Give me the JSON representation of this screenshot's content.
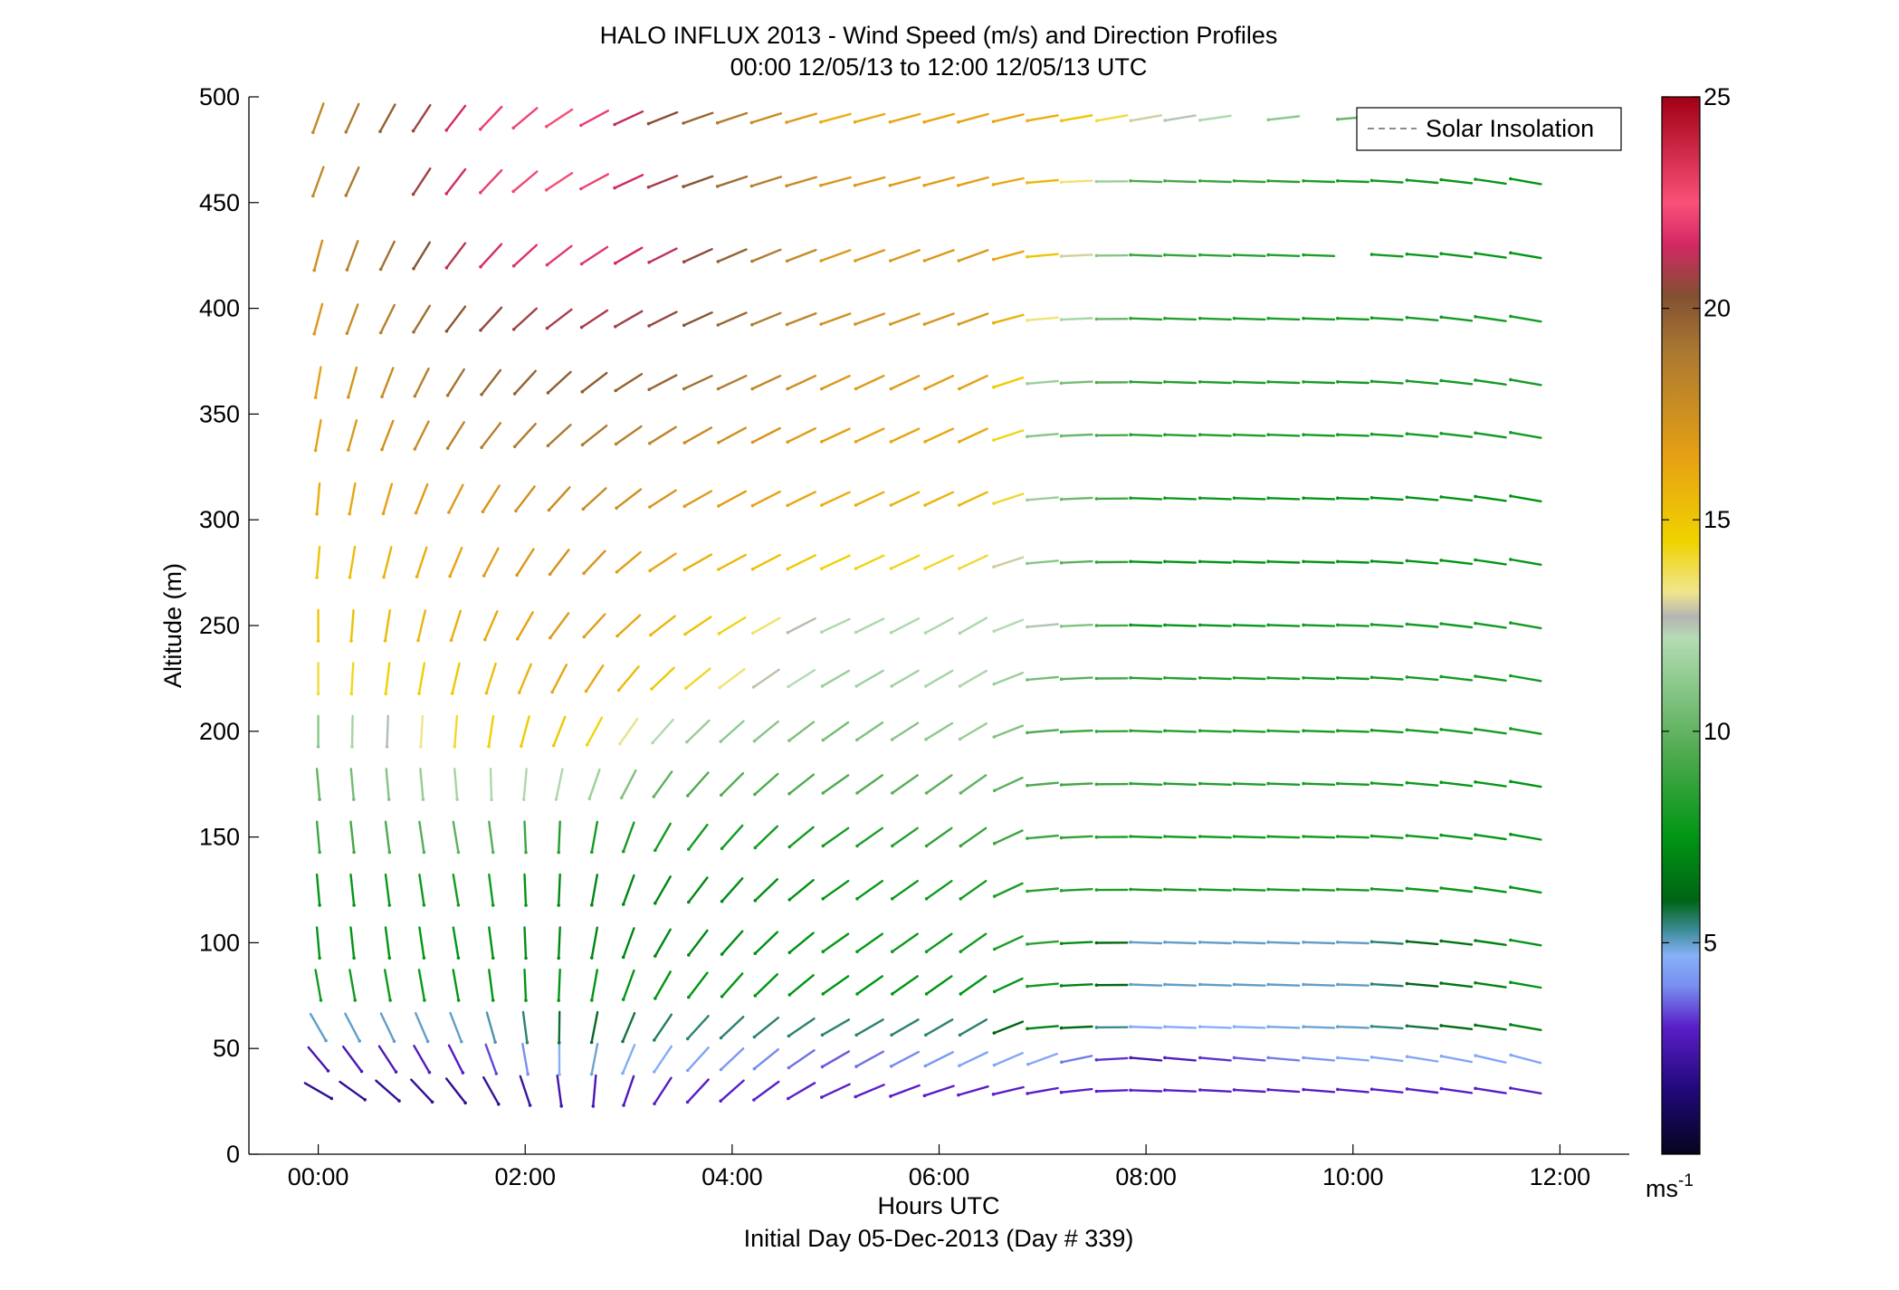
{
  "chart_data": {
    "type": "scatter",
    "title": "HALO INFLUX 2013 - Wind Speed (m/s) and Direction Profiles",
    "subtitle": "00:00 12/05/13 to 12:00 12/05/13  UTC",
    "xlabel": "Hours UTC",
    "xlabel2": "Initial Day 05-Dec-2013 (Day # 339)",
    "ylabel": "Altitude (m)",
    "xlim": [
      -0.67,
      12.67
    ],
    "ylim": [
      0,
      500
    ],
    "x_ticks": [
      0,
      2,
      4,
      6,
      8,
      10,
      12
    ],
    "x_tick_labels": [
      "00:00",
      "02:00",
      "04:00",
      "06:00",
      "08:00",
      "10:00",
      "12:00"
    ],
    "y_ticks": [
      0,
      50,
      100,
      150,
      200,
      250,
      300,
      350,
      400,
      450,
      500
    ],
    "y_tick_labels": [
      "0",
      "50",
      "100",
      "150",
      "200",
      "250",
      "300",
      "350",
      "400",
      "450",
      "500"
    ],
    "legend": {
      "label": "Solar Insolation",
      "placement": "top-right",
      "line_color": "#8c8c8c"
    },
    "colorbar": {
      "range": [
        0,
        25
      ],
      "ticks": [
        5,
        10,
        15,
        20,
        25
      ],
      "tick_labels": [
        "5",
        "10",
        "15",
        "20",
        "25"
      ],
      "unit_label": "ms",
      "unit_exponent": "-1",
      "stops": [
        {
          "v": 0,
          "c": "#05051e"
        },
        {
          "v": 1.5,
          "c": "#200878"
        },
        {
          "v": 3,
          "c": "#5a1ec8"
        },
        {
          "v": 4,
          "c": "#7890f0"
        },
        {
          "v": 4.7,
          "c": "#88b0f8"
        },
        {
          "v": 5.3,
          "c": "#3c8c96"
        },
        {
          "v": 6,
          "c": "#006414"
        },
        {
          "v": 7.5,
          "c": "#009614"
        },
        {
          "v": 9.5,
          "c": "#50aa50"
        },
        {
          "v": 12.2,
          "c": "#b4dcb4"
        },
        {
          "v": 12.7,
          "c": "#b4b4b4"
        },
        {
          "v": 13.3,
          "c": "#f0e68c"
        },
        {
          "v": 14.5,
          "c": "#f0d200"
        },
        {
          "v": 16.5,
          "c": "#e6a014"
        },
        {
          "v": 19,
          "c": "#aa7832"
        },
        {
          "v": 20.3,
          "c": "#825032"
        },
        {
          "v": 21.5,
          "c": "#d22864"
        },
        {
          "v": 22.5,
          "c": "#fa5078"
        },
        {
          "v": 25,
          "c": "#a00014"
        }
      ]
    },
    "wind_profiles": {
      "description_units": "time in hours UTC, altitude in m, speed in m/s, direction in degrees wind-from",
      "times": [
        0,
        0.33,
        0.67,
        1,
        1.33,
        1.67,
        2,
        2.33,
        2.67,
        3,
        3.33,
        3.67,
        4,
        4.33,
        4.67,
        5,
        5.33,
        5.67,
        6,
        6.33,
        6.67,
        7,
        7.33,
        7.67,
        8,
        8.33,
        8.67,
        9,
        9.33,
        9.67,
        10,
        10.33,
        10.67,
        11,
        11.33,
        11.67
      ],
      "altitudes": [
        30,
        45,
        60,
        80,
        100,
        125,
        150,
        175,
        200,
        225,
        250,
        280,
        310,
        340,
        365,
        395,
        425,
        460,
        490
      ],
      "speed_anchors": [
        {
          "t": 0,
          "s": [
            2,
            2.5,
            5,
            8,
            7.5,
            7.5,
            9,
            10,
            11,
            14,
            15,
            15,
            16,
            16.5,
            16.5,
            17,
            17.5,
            18,
            18
          ]
        },
        {
          "t": 1.5,
          "s": [
            2,
            3,
            5,
            7.5,
            7.5,
            8,
            10,
            12,
            14.5,
            15,
            16,
            16.5,
            17,
            18.5,
            19.5,
            20.5,
            21.5,
            22,
            22
          ]
        },
        {
          "t": 2.5,
          "s": [
            2.5,
            5,
            6,
            7.5,
            7,
            7,
            8,
            12,
            15,
            16.5,
            17,
            17.5,
            18,
            19,
            20,
            21,
            22,
            22.5,
            22.5
          ]
        },
        {
          "t": 3.5,
          "s": [
            3,
            4.5,
            5.5,
            7.5,
            7,
            7,
            8,
            9.5,
            11.5,
            14.5,
            15.5,
            16,
            17,
            18,
            19.5,
            20.5,
            21,
            20.5,
            20
          ]
        },
        {
          "t": 5,
          "s": [
            3,
            3.5,
            5.5,
            7.5,
            7.5,
            7.5,
            8,
            9.5,
            10.5,
            11.5,
            12,
            14.5,
            16,
            16.5,
            17,
            17.5,
            17,
            17,
            16
          ]
        },
        {
          "t": 6.5,
          "s": [
            3,
            4.5,
            5.5,
            7.5,
            8,
            8,
            9,
            10,
            11.5,
            12,
            12,
            14,
            15.5,
            16,
            16.5,
            17,
            17,
            16.5,
            16.5
          ]
        },
        {
          "t": 7,
          "s": [
            3,
            4.5,
            7,
            8,
            8.5,
            8.5,
            9,
            9.5,
            9.5,
            10.5,
            12.5,
            11,
            11.5,
            11,
            11.5,
            13.5,
            15,
            15.5,
            16
          ]
        },
        {
          "t": 8,
          "s": [
            3,
            2.5,
            4.5,
            5,
            5,
            8,
            8,
            8.5,
            8.5,
            8.5,
            7.5,
            7.5,
            8,
            8.5,
            8.5,
            8.5,
            9,
            9.5,
            13
          ]
        },
        {
          "t": 10,
          "s": [
            3,
            4.5,
            5,
            5,
            5,
            8,
            8,
            8,
            8,
            8,
            8,
            7.5,
            7.5,
            8,
            8,
            8,
            8,
            8,
            10
          ]
        },
        {
          "t": 11.7,
          "s": [
            3,
            4.5,
            7,
            7.5,
            7.5,
            7.5,
            7.5,
            7.5,
            8,
            8,
            8,
            7.5,
            7.5,
            8,
            8,
            8,
            7.5,
            7.5,
            8
          ]
        }
      ],
      "direction_anchors": [
        {
          "t": 0,
          "d": [
            300,
            320,
            330,
            350,
            355,
            355,
            355,
            355,
            0,
            0,
            0,
            5,
            5,
            10,
            10,
            15,
            15,
            20,
            20
          ]
        },
        {
          "t": 1.5,
          "d": [
            325,
            335,
            340,
            350,
            350,
            350,
            350,
            355,
            5,
            15,
            20,
            25,
            30,
            35,
            35,
            40,
            40,
            40,
            40
          ]
        },
        {
          "t": 2.5,
          "d": [
            358,
            5,
            5,
            5,
            5,
            5,
            5,
            15,
            25,
            30,
            40,
            40,
            45,
            50,
            50,
            55,
            55,
            60,
            60
          ]
        },
        {
          "t": 3.5,
          "d": [
            40,
            40,
            40,
            35,
            35,
            35,
            35,
            40,
            45,
            50,
            55,
            60,
            60,
            60,
            65,
            65,
            65,
            70,
            70
          ]
        },
        {
          "t": 5,
          "d": [
            65,
            60,
            60,
            55,
            55,
            55,
            55,
            55,
            55,
            60,
            65,
            65,
            65,
            65,
            65,
            70,
            70,
            75,
            75
          ]
        },
        {
          "t": 6.5,
          "d": [
            75,
            65,
            60,
            55,
            55,
            55,
            55,
            55,
            60,
            60,
            60,
            65,
            65,
            65,
            65,
            70,
            70,
            75,
            75
          ]
        },
        {
          "t": 7,
          "d": [
            80,
            70,
            85,
            85,
            85,
            85,
            85,
            85,
            85,
            85,
            85,
            85,
            85,
            85,
            85,
            85,
            85,
            85,
            80
          ]
        },
        {
          "t": 8,
          "d": [
            92,
            95,
            92,
            92,
            92,
            92,
            92,
            92,
            92,
            92,
            92,
            92,
            92,
            92,
            92,
            92,
            92,
            92,
            80
          ]
        },
        {
          "t": 10,
          "d": [
            95,
            95,
            92,
            92,
            92,
            92,
            92,
            92,
            92,
            92,
            92,
            92,
            92,
            92,
            92,
            92,
            92,
            92,
            85
          ]
        },
        {
          "t": 11.7,
          "d": [
            100,
            105,
            100,
            100,
            100,
            100,
            100,
            100,
            100,
            100,
            100,
            100,
            100,
            100,
            100,
            100,
            100,
            100,
            100
          ]
        }
      ],
      "missing": [
        {
          "t": 0.67,
          "alt": 460
        },
        {
          "t": 9,
          "alt": 490
        },
        {
          "t": 9.67,
          "alt": 490
        },
        {
          "t": 10.33,
          "alt": 490
        },
        {
          "t": 10.67,
          "alt": 490
        },
        {
          "t": 11,
          "alt": 490
        },
        {
          "t": 11.33,
          "alt": 490
        },
        {
          "t": 11.67,
          "alt": 490
        },
        {
          "t": 10,
          "alt": 425
        }
      ]
    }
  }
}
